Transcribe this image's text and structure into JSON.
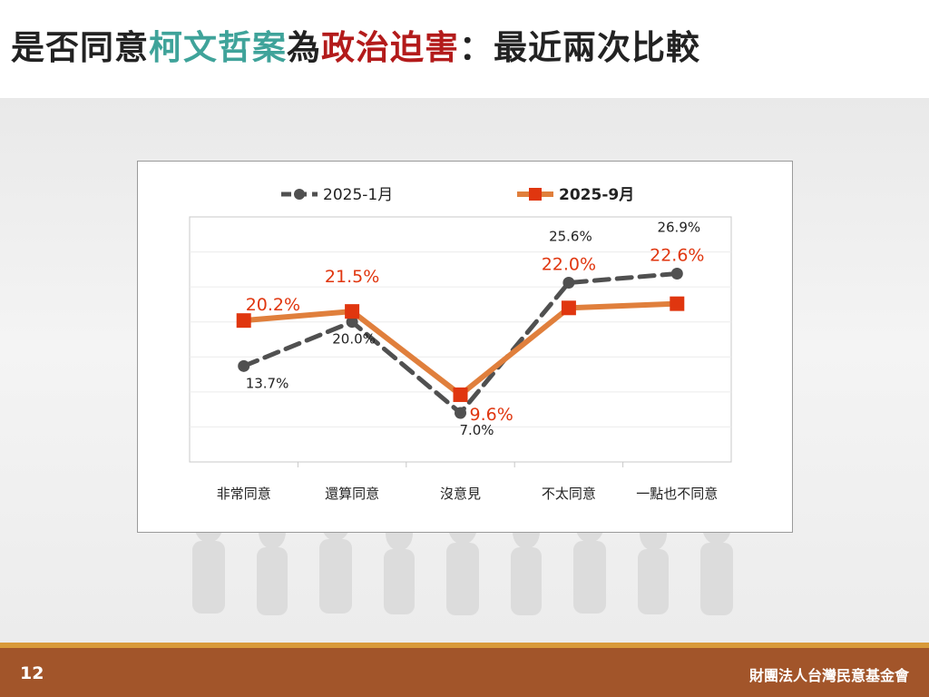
{
  "title": {
    "part1": "是否同意",
    "part2": "柯文哲案",
    "part3": "為",
    "part4": "政治迫害",
    "part5": "：最近兩次比較"
  },
  "footer": {
    "page_number": "12",
    "organization": "財團法人台灣民意基金會"
  },
  "colors": {
    "series1": "#505050",
    "series2": "#e07f3c",
    "series2_marker": "#e0360f",
    "series2_label": "#e0360f",
    "title_teal": "#3fa39a",
    "title_red": "#b31b1b",
    "footer_bg": "#a2552a",
    "footer_line": "#d99a3a"
  },
  "chart_data": {
    "type": "line",
    "categories": [
      "非常同意",
      "還算同意",
      "沒意見",
      "不太同意",
      "一點也不同意"
    ],
    "ylim": [
      0,
      35
    ],
    "grid": true,
    "legend_position": "top",
    "series": [
      {
        "name": "2025-1月",
        "values": [
          13.7,
          20.0,
          7.0,
          25.6,
          26.9
        ],
        "labels": [
          "13.7%",
          "20.0%",
          "7.0%",
          "25.6%",
          "26.9%"
        ]
      },
      {
        "name": "2025-9月",
        "values": [
          20.2,
          21.5,
          9.6,
          22.0,
          22.6
        ],
        "labels": [
          "20.2%",
          "21.5%",
          "9.6%",
          "22.0%",
          "22.6%"
        ]
      }
    ]
  }
}
